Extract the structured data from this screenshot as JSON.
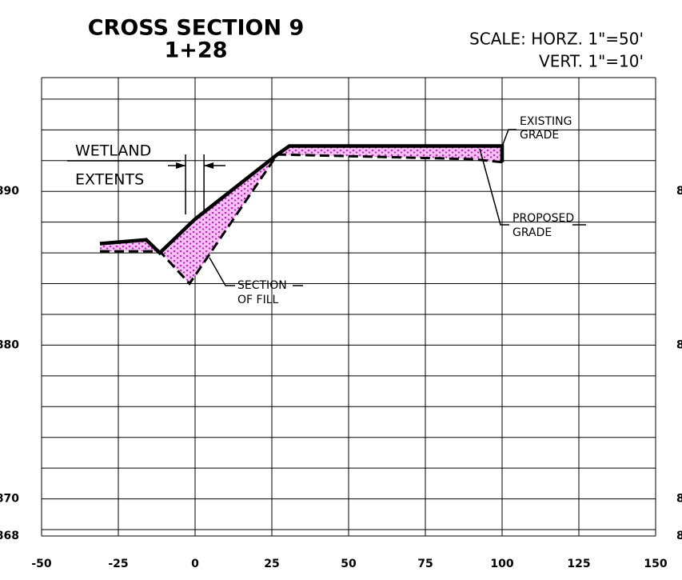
{
  "chart_data": {
    "type": "line",
    "title": "CROSS SECTION 9",
    "subtitle": "1+28",
    "scale": [
      "SCALE:  HORZ. 1\"=50'",
      "VERT. 1\"=10'"
    ],
    "xlim": [
      -50,
      150
    ],
    "xticks": [
      -50,
      -25,
      0,
      25,
      50,
      75,
      100,
      125,
      150
    ],
    "ylim": [
      868,
      897.4
    ],
    "yticks": [
      868,
      870,
      880,
      890
    ],
    "minor_yticks": [
      872,
      874,
      876,
      878,
      882,
      884,
      886,
      888,
      892,
      894,
      896
    ],
    "grid": true,
    "series": [
      {
        "name": "proposed",
        "color": "#000000",
        "style": "solid",
        "x": [
          -31,
          -15.9,
          -11.5,
          0,
          26.8,
          30.7,
          100,
          100
        ],
        "values": [
          886.6,
          886.85,
          886.0,
          888.2,
          892.4,
          892.95,
          892.95,
          891.9
        ]
      },
      {
        "name": "existing",
        "color": "#000000",
        "style": "dashed",
        "x": [
          -31,
          -11.5,
          -1.8,
          26.8,
          90,
          100
        ],
        "values": [
          886.1,
          886.1,
          884.0,
          892.4,
          892.1,
          891.9
        ]
      }
    ],
    "fill_color": "#e040e0",
    "wetland_limits": [
      -3.1,
      2.9
    ],
    "annotations": {
      "wetland": [
        "WETLAND",
        "EXTENTS"
      ],
      "existing": [
        "EXISTING",
        "GRADE"
      ],
      "proposed": [
        "PROPOSED",
        "GRADE"
      ],
      "fill": [
        "SECTION",
        "OF FILL"
      ]
    }
  }
}
